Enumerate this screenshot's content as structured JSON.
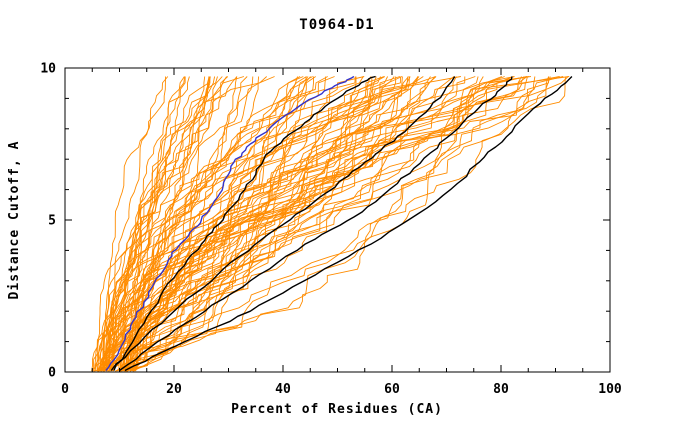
{
  "figure": {
    "background": "#ffffff",
    "frame_color": "#000000"
  },
  "chart_data": {
    "type": "line",
    "title": "T0964-D1",
    "xlabel": "Percent of Residues (CA)",
    "ylabel": "Distance Cutoff, A",
    "xlim": [
      0,
      100
    ],
    "ylim": [
      0,
      10
    ],
    "x_ticks": [
      0,
      20,
      40,
      60,
      80,
      100
    ],
    "y_ticks": [
      0,
      5,
      10
    ],
    "x_minor_step": 5,
    "y_minor_step": 1,
    "grid": false,
    "legend": "none",
    "colors": {
      "ensemble": "#ff8c00",
      "highlight": "#000000",
      "best_model": "#3333cc",
      "frame": "#000000"
    },
    "highlight_series": [
      {
        "name": "model-black-1",
        "color": "#000000",
        "points": [
          [
            9,
            0.05
          ],
          [
            11,
            0.6
          ],
          [
            13,
            1.2
          ],
          [
            15,
            1.8
          ],
          [
            17.5,
            2.5
          ],
          [
            20,
            3.1
          ],
          [
            22.5,
            3.7
          ],
          [
            25,
            4.2
          ],
          [
            27,
            4.6
          ],
          [
            29,
            5.0
          ],
          [
            31,
            5.5
          ],
          [
            33,
            6.0
          ],
          [
            35,
            6.5
          ],
          [
            36.5,
            7.0
          ],
          [
            38.5,
            7.4
          ],
          [
            41,
            7.8
          ],
          [
            44,
            8.2
          ],
          [
            47,
            8.6
          ],
          [
            50,
            9.0
          ],
          [
            53,
            9.35
          ],
          [
            55.5,
            9.6
          ],
          [
            57,
            9.72
          ]
        ]
      },
      {
        "name": "model-black-2",
        "color": "#000000",
        "points": [
          [
            8.5,
            0.05
          ],
          [
            12,
            0.7
          ],
          [
            16,
            1.4
          ],
          [
            20,
            2.0
          ],
          [
            24,
            2.6
          ],
          [
            28,
            3.2
          ],
          [
            32,
            3.8
          ],
          [
            36,
            4.35
          ],
          [
            40,
            4.85
          ],
          [
            44,
            5.35
          ],
          [
            48,
            5.9
          ],
          [
            52,
            6.45
          ],
          [
            55,
            6.9
          ],
          [
            58,
            7.3
          ],
          [
            61,
            7.75
          ],
          [
            64,
            8.2
          ],
          [
            67,
            8.7
          ],
          [
            69.5,
            9.2
          ],
          [
            71.5,
            9.72
          ]
        ]
      },
      {
        "name": "model-black-3",
        "color": "#000000",
        "points": [
          [
            10,
            0.05
          ],
          [
            14,
            0.6
          ],
          [
            19,
            1.2
          ],
          [
            24,
            1.8
          ],
          [
            29,
            2.4
          ],
          [
            34,
            3.0
          ],
          [
            39,
            3.6
          ],
          [
            44,
            4.2
          ],
          [
            49,
            4.7
          ],
          [
            53,
            5.1
          ],
          [
            57,
            5.6
          ],
          [
            61,
            6.2
          ],
          [
            64,
            6.7
          ],
          [
            67,
            7.2
          ],
          [
            70,
            7.7
          ],
          [
            73,
            8.2
          ],
          [
            76,
            8.7
          ],
          [
            79,
            9.1
          ],
          [
            81,
            9.45
          ],
          [
            82,
            9.72
          ]
        ]
      },
      {
        "name": "model-black-4",
        "color": "#000000",
        "points": [
          [
            11,
            0.05
          ],
          [
            16,
            0.5
          ],
          [
            22,
            1.0
          ],
          [
            28,
            1.5
          ],
          [
            34,
            2.0
          ],
          [
            40,
            2.6
          ],
          [
            46,
            3.2
          ],
          [
            52,
            3.8
          ],
          [
            58,
            4.4
          ],
          [
            63,
            5.0
          ],
          [
            68,
            5.6
          ],
          [
            72,
            6.2
          ],
          [
            76,
            6.9
          ],
          [
            79,
            7.4
          ],
          [
            82,
            7.9
          ],
          [
            85,
            8.5
          ],
          [
            88,
            9.0
          ],
          [
            91,
            9.4
          ],
          [
            93,
            9.72
          ]
        ]
      },
      {
        "name": "model-blue-best",
        "color": "#3333cc",
        "points": [
          [
            7.5,
            0.05
          ],
          [
            9,
            0.4
          ],
          [
            10.5,
            0.9
          ],
          [
            12,
            1.4
          ],
          [
            13,
            1.8
          ],
          [
            14.5,
            2.3
          ],
          [
            16,
            2.8
          ],
          [
            17.5,
            3.2
          ],
          [
            19,
            3.7
          ],
          [
            20.5,
            4.05
          ],
          [
            22,
            4.35
          ],
          [
            23.5,
            4.7
          ],
          [
            25,
            5.0
          ],
          [
            26.5,
            5.35
          ],
          [
            28,
            5.75
          ],
          [
            29,
            6.1
          ],
          [
            30,
            6.5
          ],
          [
            31,
            6.9
          ],
          [
            32.5,
            7.2
          ],
          [
            34,
            7.5
          ],
          [
            36,
            7.8
          ],
          [
            38,
            8.1
          ],
          [
            40.5,
            8.45
          ],
          [
            43,
            8.75
          ],
          [
            46,
            9.05
          ],
          [
            49,
            9.35
          ],
          [
            51.5,
            9.55
          ],
          [
            53,
            9.72
          ]
        ]
      }
    ],
    "ensemble": {
      "name": "server-model-curves",
      "color": "#ff8c00",
      "count": 95,
      "seed": 1337,
      "y_top": 9.72,
      "start_x_range": [
        4.8,
        13.0
      ],
      "end_x_range": [
        18.0,
        96.0
      ],
      "shape_exponent_range": [
        0.55,
        2.4
      ]
    }
  }
}
